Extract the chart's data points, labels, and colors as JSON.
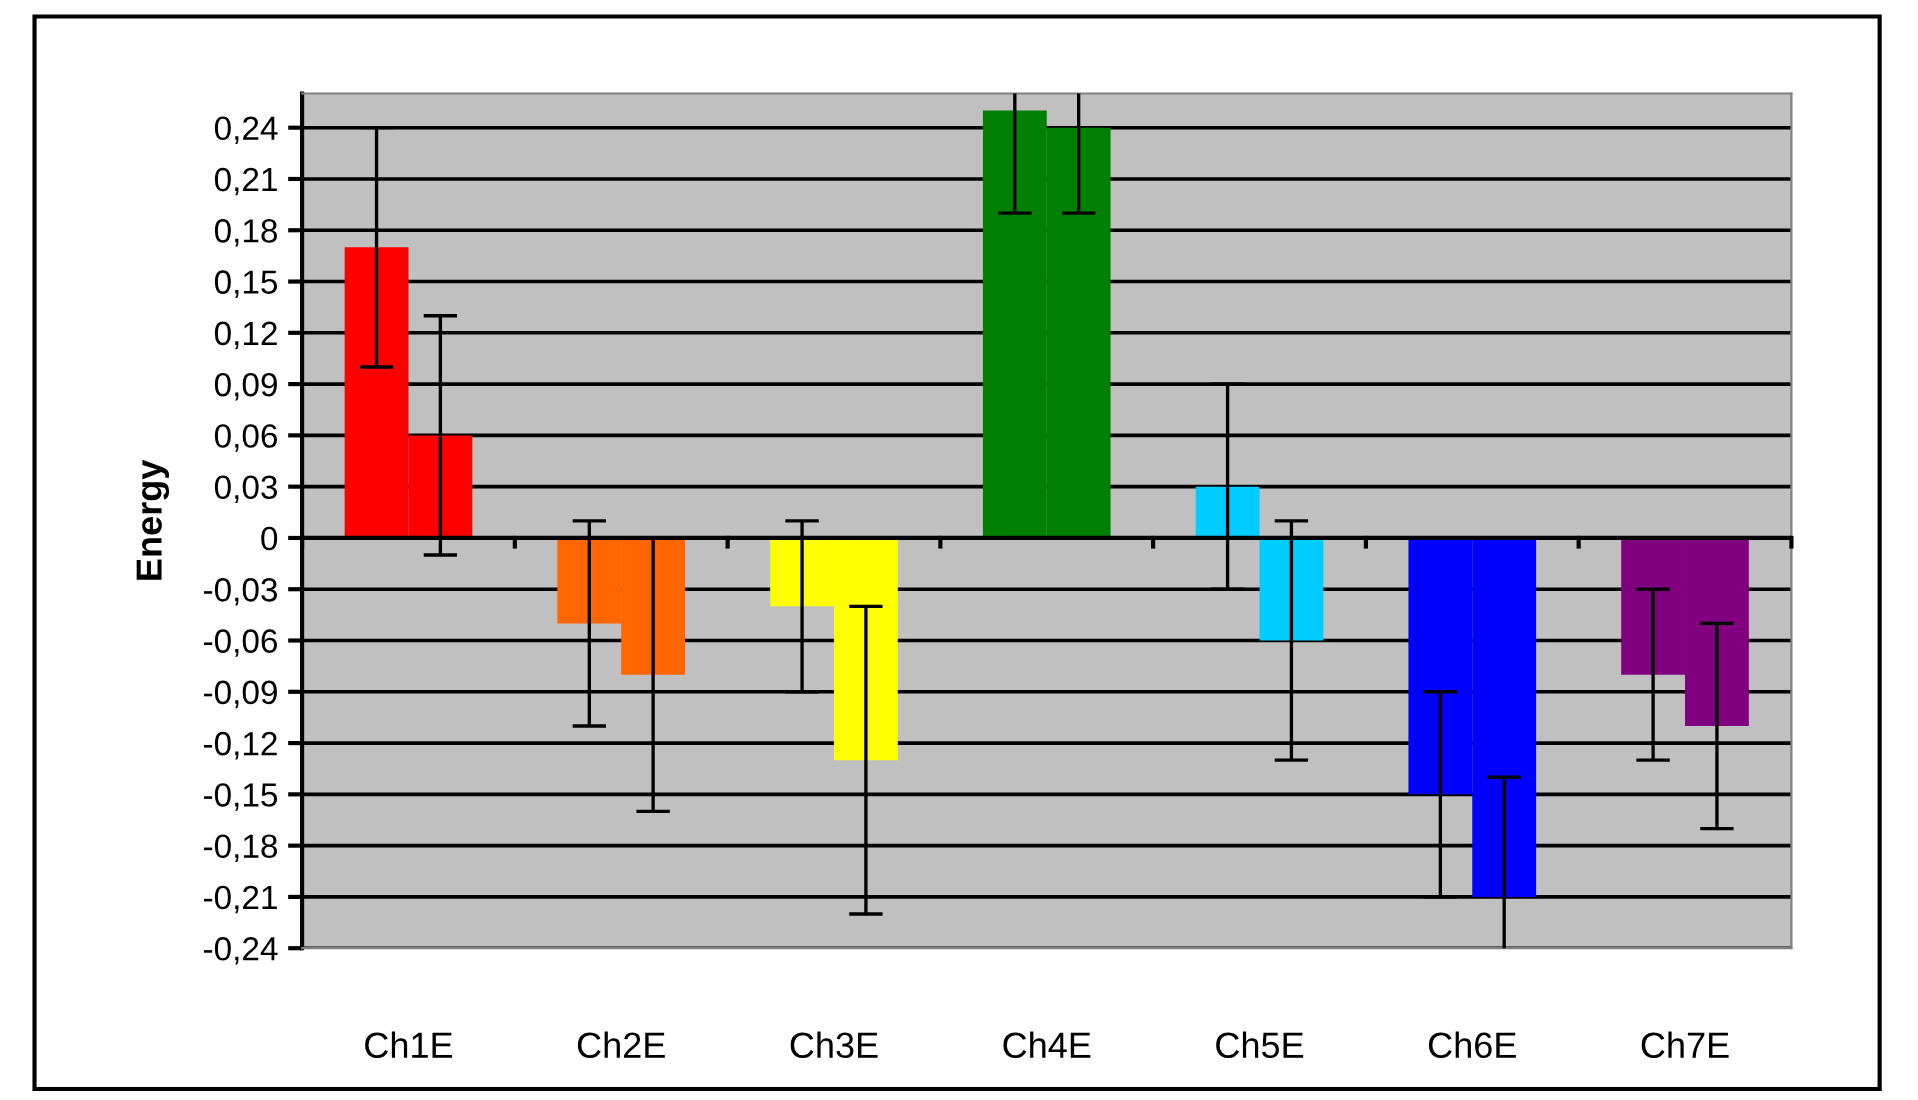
{
  "chart_data": {
    "type": "bar",
    "ylabel": "Energy",
    "categories": [
      "Ch1E",
      "Ch2E",
      "Ch3E",
      "Ch4E",
      "Ch5E",
      "Ch6E",
      "Ch7E"
    ],
    "series": [
      {
        "colors": [
          "#ff0000",
          "#ff6600",
          "#ffff00",
          "#008000",
          "#00ccff",
          "#0000ff",
          "#800080"
        ],
        "values": [
          0.17,
          -0.05,
          -0.04,
          0.25,
          0.03,
          -0.15,
          -0.08
        ],
        "errors": [
          0.07,
          0.06,
          0.05,
          0.06,
          0.06,
          0.06,
          0.05
        ]
      },
      {
        "colors": [
          "#ff0000",
          "#ff6600",
          "#ffff00",
          "#008000",
          "#00ccff",
          "#0000ff",
          "#800080"
        ],
        "values": [
          0.06,
          -0.08,
          -0.13,
          0.24,
          -0.06,
          -0.21,
          -0.11
        ],
        "errors": [
          0.07,
          0.08,
          0.09,
          0.05,
          0.07,
          0.07,
          0.06
        ]
      }
    ],
    "ylim": [
      -0.24,
      0.26
    ],
    "yticks": [
      {
        "value": -0.24,
        "label": "-0,24"
      },
      {
        "value": -0.21,
        "label": "-0,21"
      },
      {
        "value": -0.18,
        "label": "-0,18"
      },
      {
        "value": -0.15,
        "label": "-0,15"
      },
      {
        "value": -0.12,
        "label": "-0,12"
      },
      {
        "value": -0.09,
        "label": "-0,09"
      },
      {
        "value": -0.06,
        "label": "-0,06"
      },
      {
        "value": -0.03,
        "label": "-0,03"
      },
      {
        "value": 0,
        "label": "0"
      },
      {
        "value": 0.03,
        "label": "0,03"
      },
      {
        "value": 0.06,
        "label": "0,06"
      },
      {
        "value": 0.09,
        "label": "0,09"
      },
      {
        "value": 0.12,
        "label": "0,12"
      },
      {
        "value": 0.15,
        "label": "0,15"
      },
      {
        "value": 0.18,
        "label": "0,18"
      },
      {
        "value": 0.21,
        "label": "0,21"
      },
      {
        "value": 0.24,
        "label": "0,24"
      }
    ],
    "grid": "y"
  }
}
